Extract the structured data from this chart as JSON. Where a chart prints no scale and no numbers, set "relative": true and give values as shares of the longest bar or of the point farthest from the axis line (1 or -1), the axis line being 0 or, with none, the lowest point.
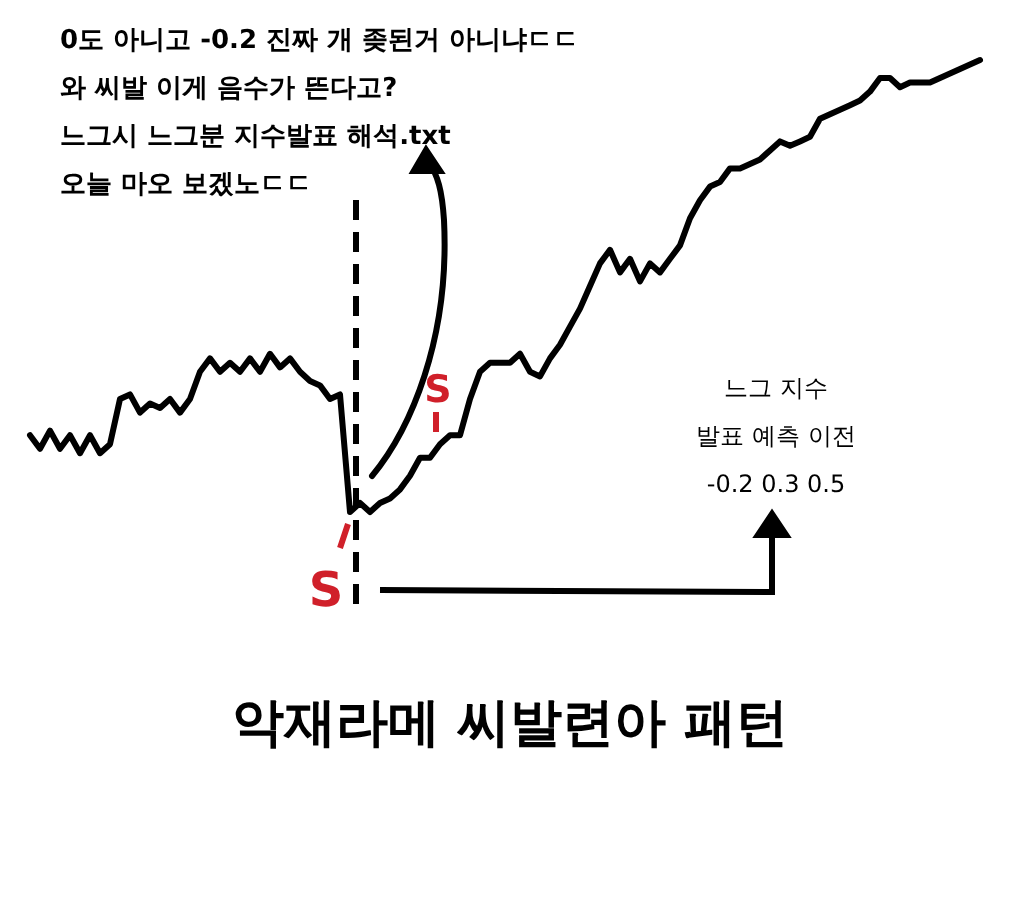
{
  "chart_data": {
    "type": "line",
    "relative": true,
    "title": "악재라메 씨발련아 패턴",
    "categories": [
      null,
      null,
      null,
      null,
      null,
      null,
      null,
      null,
      null,
      null,
      null,
      null,
      null,
      null,
      null,
      null,
      null,
      null,
      null,
      null,
      null,
      null,
      null,
      null,
      null,
      null,
      null,
      null,
      null,
      null,
      null,
      null,
      null,
      null,
      null,
      null,
      null,
      null,
      null,
      null,
      null,
      null,
      null,
      null,
      null,
      null,
      null,
      null,
      null,
      null,
      null,
      null,
      null,
      null,
      null,
      null,
      null,
      null,
      null,
      null,
      null,
      null,
      null,
      null,
      null,
      null,
      null,
      null,
      null,
      null,
      null,
      null,
      null,
      null,
      null,
      null,
      null,
      null,
      null,
      null,
      null,
      null,
      null,
      null,
      null,
      null,
      null,
      null,
      null,
      null,
      null,
      null,
      null,
      null,
      null,
      null
    ],
    "series": [
      {
        "color": "#000000",
        "values": [
          0.17,
          0.14,
          0.18,
          0.14,
          0.17,
          0.13,
          0.17,
          0.13,
          0.15,
          0.25,
          0.26,
          0.22,
          0.24,
          0.23,
          0.25,
          0.22,
          0.25,
          0.31,
          0.34,
          0.31,
          0.33,
          0.31,
          0.34,
          0.31,
          0.35,
          0.32,
          0.34,
          0.31,
          0.29,
          0.28,
          0.25,
          0.26,
          0,
          0.02,
          0,
          0.02,
          0.03,
          0.05,
          0.08,
          0.12,
          0.12,
          0.15,
          0.17,
          0.17,
          0.25,
          0.31,
          0.33,
          0.33,
          0.33,
          0.35,
          0.31,
          0.3,
          0.34,
          0.37,
          0.41,
          0.45,
          0.5,
          0.55,
          0.58,
          0.53,
          0.56,
          0.51,
          0.55,
          0.53,
          0.56,
          0.59,
          0.65,
          0.69,
          0.72,
          0.73,
          0.76,
          0.76,
          0.77,
          0.78,
          0.8,
          0.82,
          0.81,
          0.82,
          0.83,
          0.87,
          0.88,
          0.89,
          0.9,
          0.91,
          0.93,
          0.96,
          0.96,
          0.94,
          0.95,
          0.95,
          0.95,
          0.96,
          0.97,
          0.98,
          0.99,
          1
        ]
      }
    ],
    "annotations": [
      "0도 아니고 -0.2 진짜 개 좆된거 아니냐ㄷㄷ",
      "와 씨발 이게 음수가 뜬다고?",
      "느그시 느그분 지수발표 해석.txt",
      "오늘 마오 보겠노ㄷㄷ",
      "느그 지수",
      "발표 예측 이전",
      "-0.2 0.3 0.5",
      "S",
      "S"
    ],
    "grid": false,
    "line_style": "solid",
    "marker": "none"
  }
}
